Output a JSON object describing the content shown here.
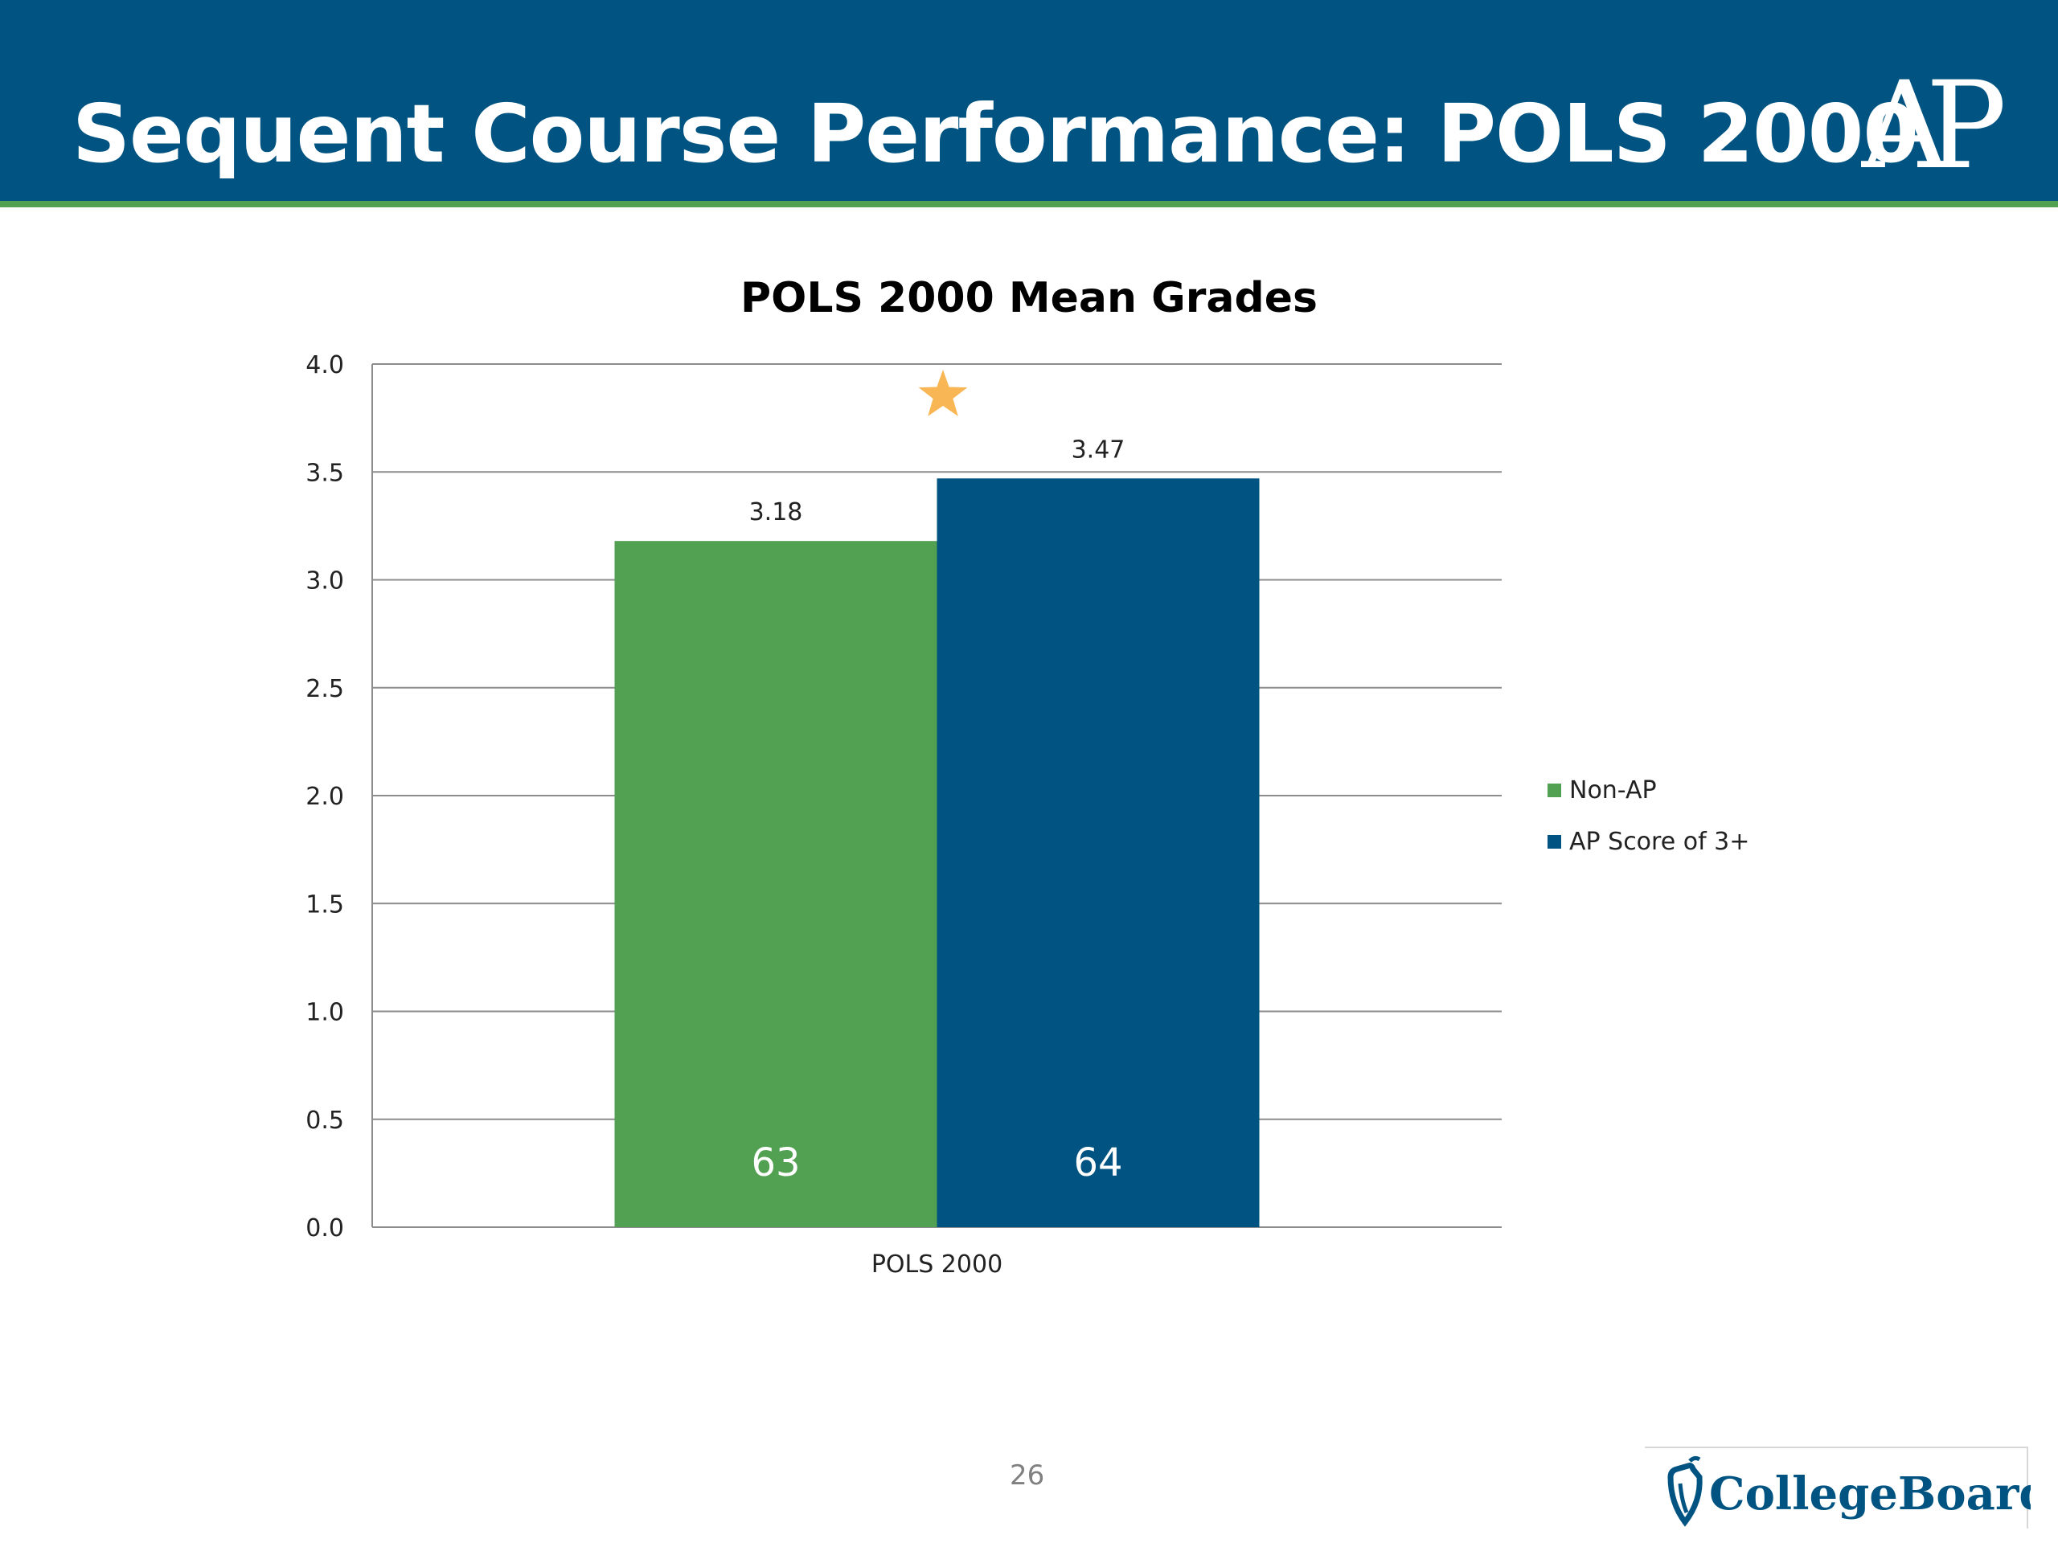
{
  "slide": {
    "title": "Sequent Course Performance: POLS 2000",
    "page_number": "26",
    "ap_logo_text": "AP",
    "collegeboard_logo_text": "CollegeBoard",
    "colors": {
      "header": "#015482",
      "rule": "#52a152",
      "star": "#f9b654"
    }
  },
  "chart_data": {
    "type": "bar",
    "title": "POLS 2000 Mean Grades",
    "categories": [
      "POLS 2000"
    ],
    "series": [
      {
        "name": "Non-AP",
        "values": [
          3.18
        ],
        "n_label": "63",
        "color": "#52a152"
      },
      {
        "name": "AP Score of 3+",
        "values": [
          3.47
        ],
        "n_label": "64",
        "color": "#015482"
      }
    ],
    "ylim": [
      0,
      4
    ],
    "yticks": [
      "0.0",
      "0.5",
      "1.0",
      "1.5",
      "2.0",
      "2.5",
      "3.0",
      "3.5",
      "4.0"
    ],
    "xlabel": "",
    "ylabel": "",
    "grid": true,
    "legend_position": "right",
    "annotation": "star-above-bars"
  }
}
